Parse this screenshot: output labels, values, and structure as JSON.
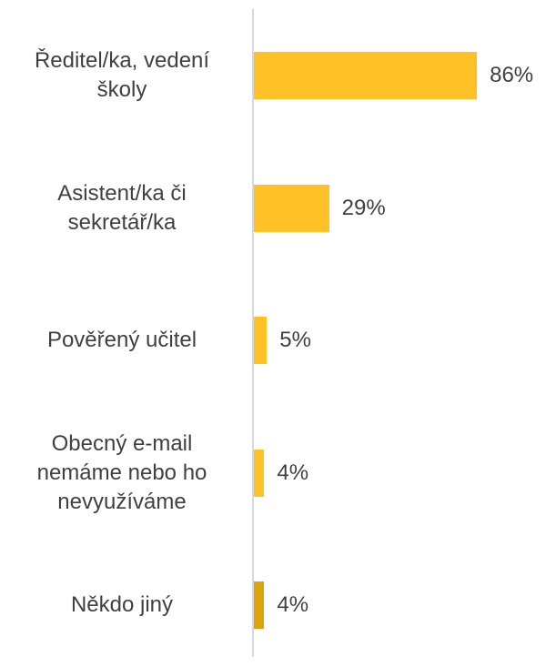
{
  "chart_data": {
    "type": "bar",
    "orientation": "horizontal",
    "categories": [
      "Ředitel/ka, vedení školy",
      "Asistent/ka či sekretář/ka",
      "Pověřený učitel",
      "Obecný e-mail nemáme nebo ho nevyužíváme",
      "Někdo jiný"
    ],
    "values": [
      86,
      29,
      5,
      4,
      4
    ],
    "value_labels": [
      "86%",
      "29%",
      "5%",
      "4%",
      "4%"
    ],
    "colors": [
      "#ffc125",
      "#ffc125",
      "#ffc125",
      "#ffc125",
      "#dca40a"
    ]
  }
}
